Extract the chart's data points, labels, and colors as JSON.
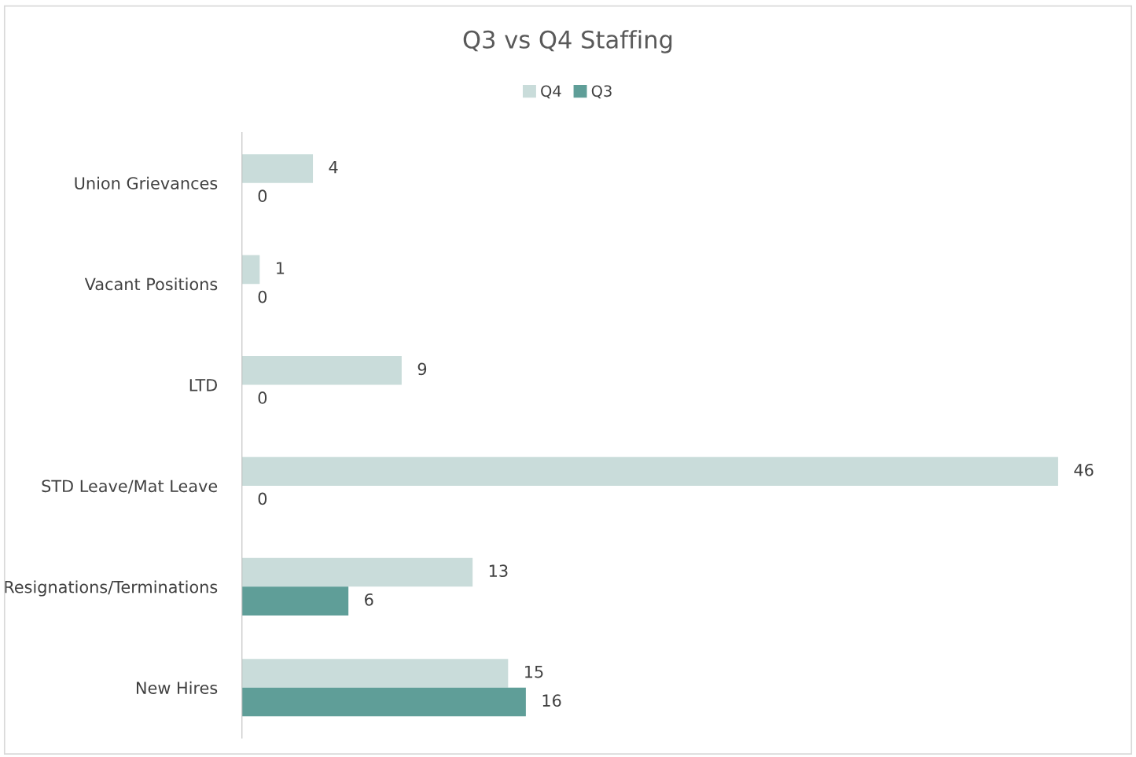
{
  "chart_data": {
    "type": "bar",
    "orientation": "horizontal",
    "title": "Q3 vs Q4 Staffing",
    "categories": [
      "Union Grievances",
      "Vacant Positions",
      "LTD",
      "STD Leave/Mat Leave",
      "Resignations/Terminations",
      "New Hires"
    ],
    "series": [
      {
        "name": "Q4",
        "color": "#c9dcda",
        "values": [
          4,
          1,
          9,
          46,
          13,
          15
        ]
      },
      {
        "name": "Q3",
        "color": "#5f9e98",
        "values": [
          0,
          0,
          0,
          0,
          6,
          16
        ]
      }
    ],
    "data_labels": true,
    "legend": "top",
    "grid": false
  }
}
